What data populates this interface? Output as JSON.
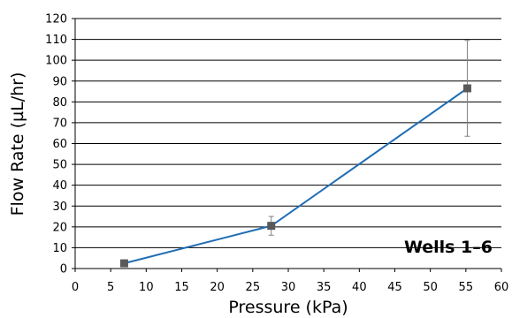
{
  "chart_data": {
    "type": "line",
    "title": "",
    "xlabel": "Pressure (kPa)",
    "ylabel": "Flow Rate (µL/hr)",
    "xlim": [
      0,
      60
    ],
    "ylim": [
      0,
      120
    ],
    "x_ticks": [
      "0",
      "5",
      "10",
      "15",
      "20",
      "25",
      "30",
      "35",
      "40",
      "45",
      "50",
      "55",
      "60"
    ],
    "y_ticks": [
      "0",
      "10",
      "20",
      "30",
      "40",
      "50",
      "60",
      "70",
      "80",
      "90",
      "100",
      "110",
      "120"
    ],
    "grid": "horizontal",
    "annotation": "Wells 1–6",
    "colors": {
      "line": "#1f6db5",
      "marker": "#595959",
      "error_bar": "#808080",
      "grid": "#000000"
    },
    "series": [
      {
        "x": [
          6.9,
          27.6,
          55.2
        ],
        "y": [
          2.5,
          20.5,
          86.5
        ],
        "error": [
          1,
          4.5,
          23
        ]
      }
    ]
  }
}
